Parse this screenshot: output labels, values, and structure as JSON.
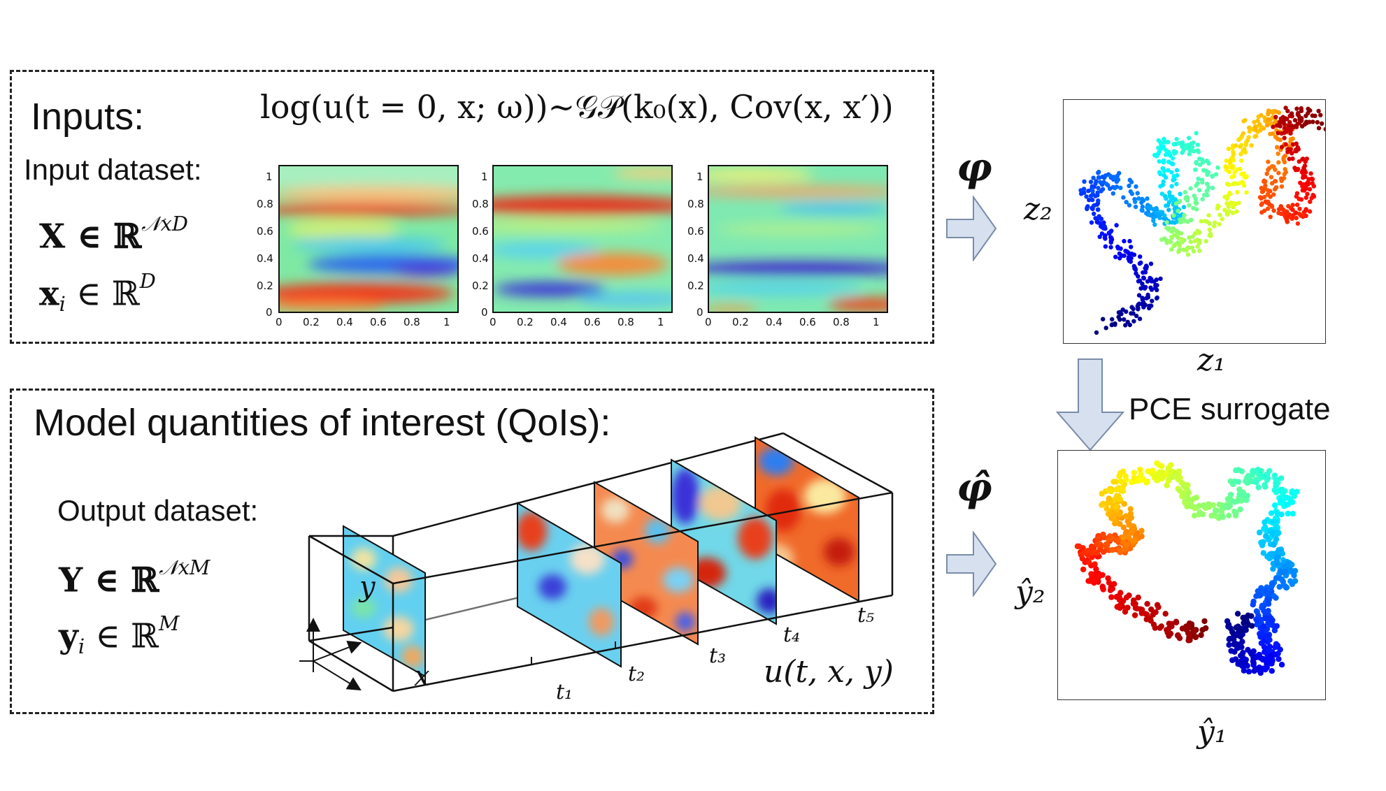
{
  "inputs": {
    "title": "Inputs:",
    "formula": "log(u(t = 0, x; ω))~𝒢𝒫(k₀(x), Cov(x, x′))",
    "dataset_label": "Input dataset:",
    "eq1": "X ∈ ℝ",
    "eq1_sup": "𝒩xD",
    "eq2_base": "x",
    "eq2_sub": "i",
    "eq2_rest": " ∈ ℝ",
    "eq2_sup": "D",
    "y_ticks": [
      "1",
      "0.8",
      "0.6",
      "0.4",
      "0.2",
      "0"
    ],
    "x_ticks": [
      "0",
      "0.2",
      "0.4",
      "0.6",
      "0.8",
      "1"
    ]
  },
  "outputs": {
    "title": "Model quantities of interest (QoIs):",
    "dataset_label": "Output dataset:",
    "eq1": "Y ∈ ℝ",
    "eq1_sup": "𝒩xM",
    "eq2_base": "y",
    "eq2_sub": "i",
    "eq2_rest": " ∈ ℝ",
    "eq2_sup": "M",
    "axis_y": "y",
    "axis_x": "x",
    "time_labels": [
      "t₁",
      "t₂",
      "t₃",
      "t₄",
      "t₅"
    ],
    "field_label": "u(t, x, y)"
  },
  "mapping": {
    "phi": "φ",
    "phi_hat": "φ̂",
    "pce_label": "PCE surrogate"
  },
  "latent_top": {
    "xlabel": "z₁",
    "ylabel": "z₂"
  },
  "latent_bottom": {
    "xlabel": "ŷ₁",
    "ylabel": "ŷ₂"
  },
  "colors": {
    "arrow_fill": "#d6e0ef",
    "arrow_stroke": "#7a8ca8",
    "box_border": "#222222"
  }
}
